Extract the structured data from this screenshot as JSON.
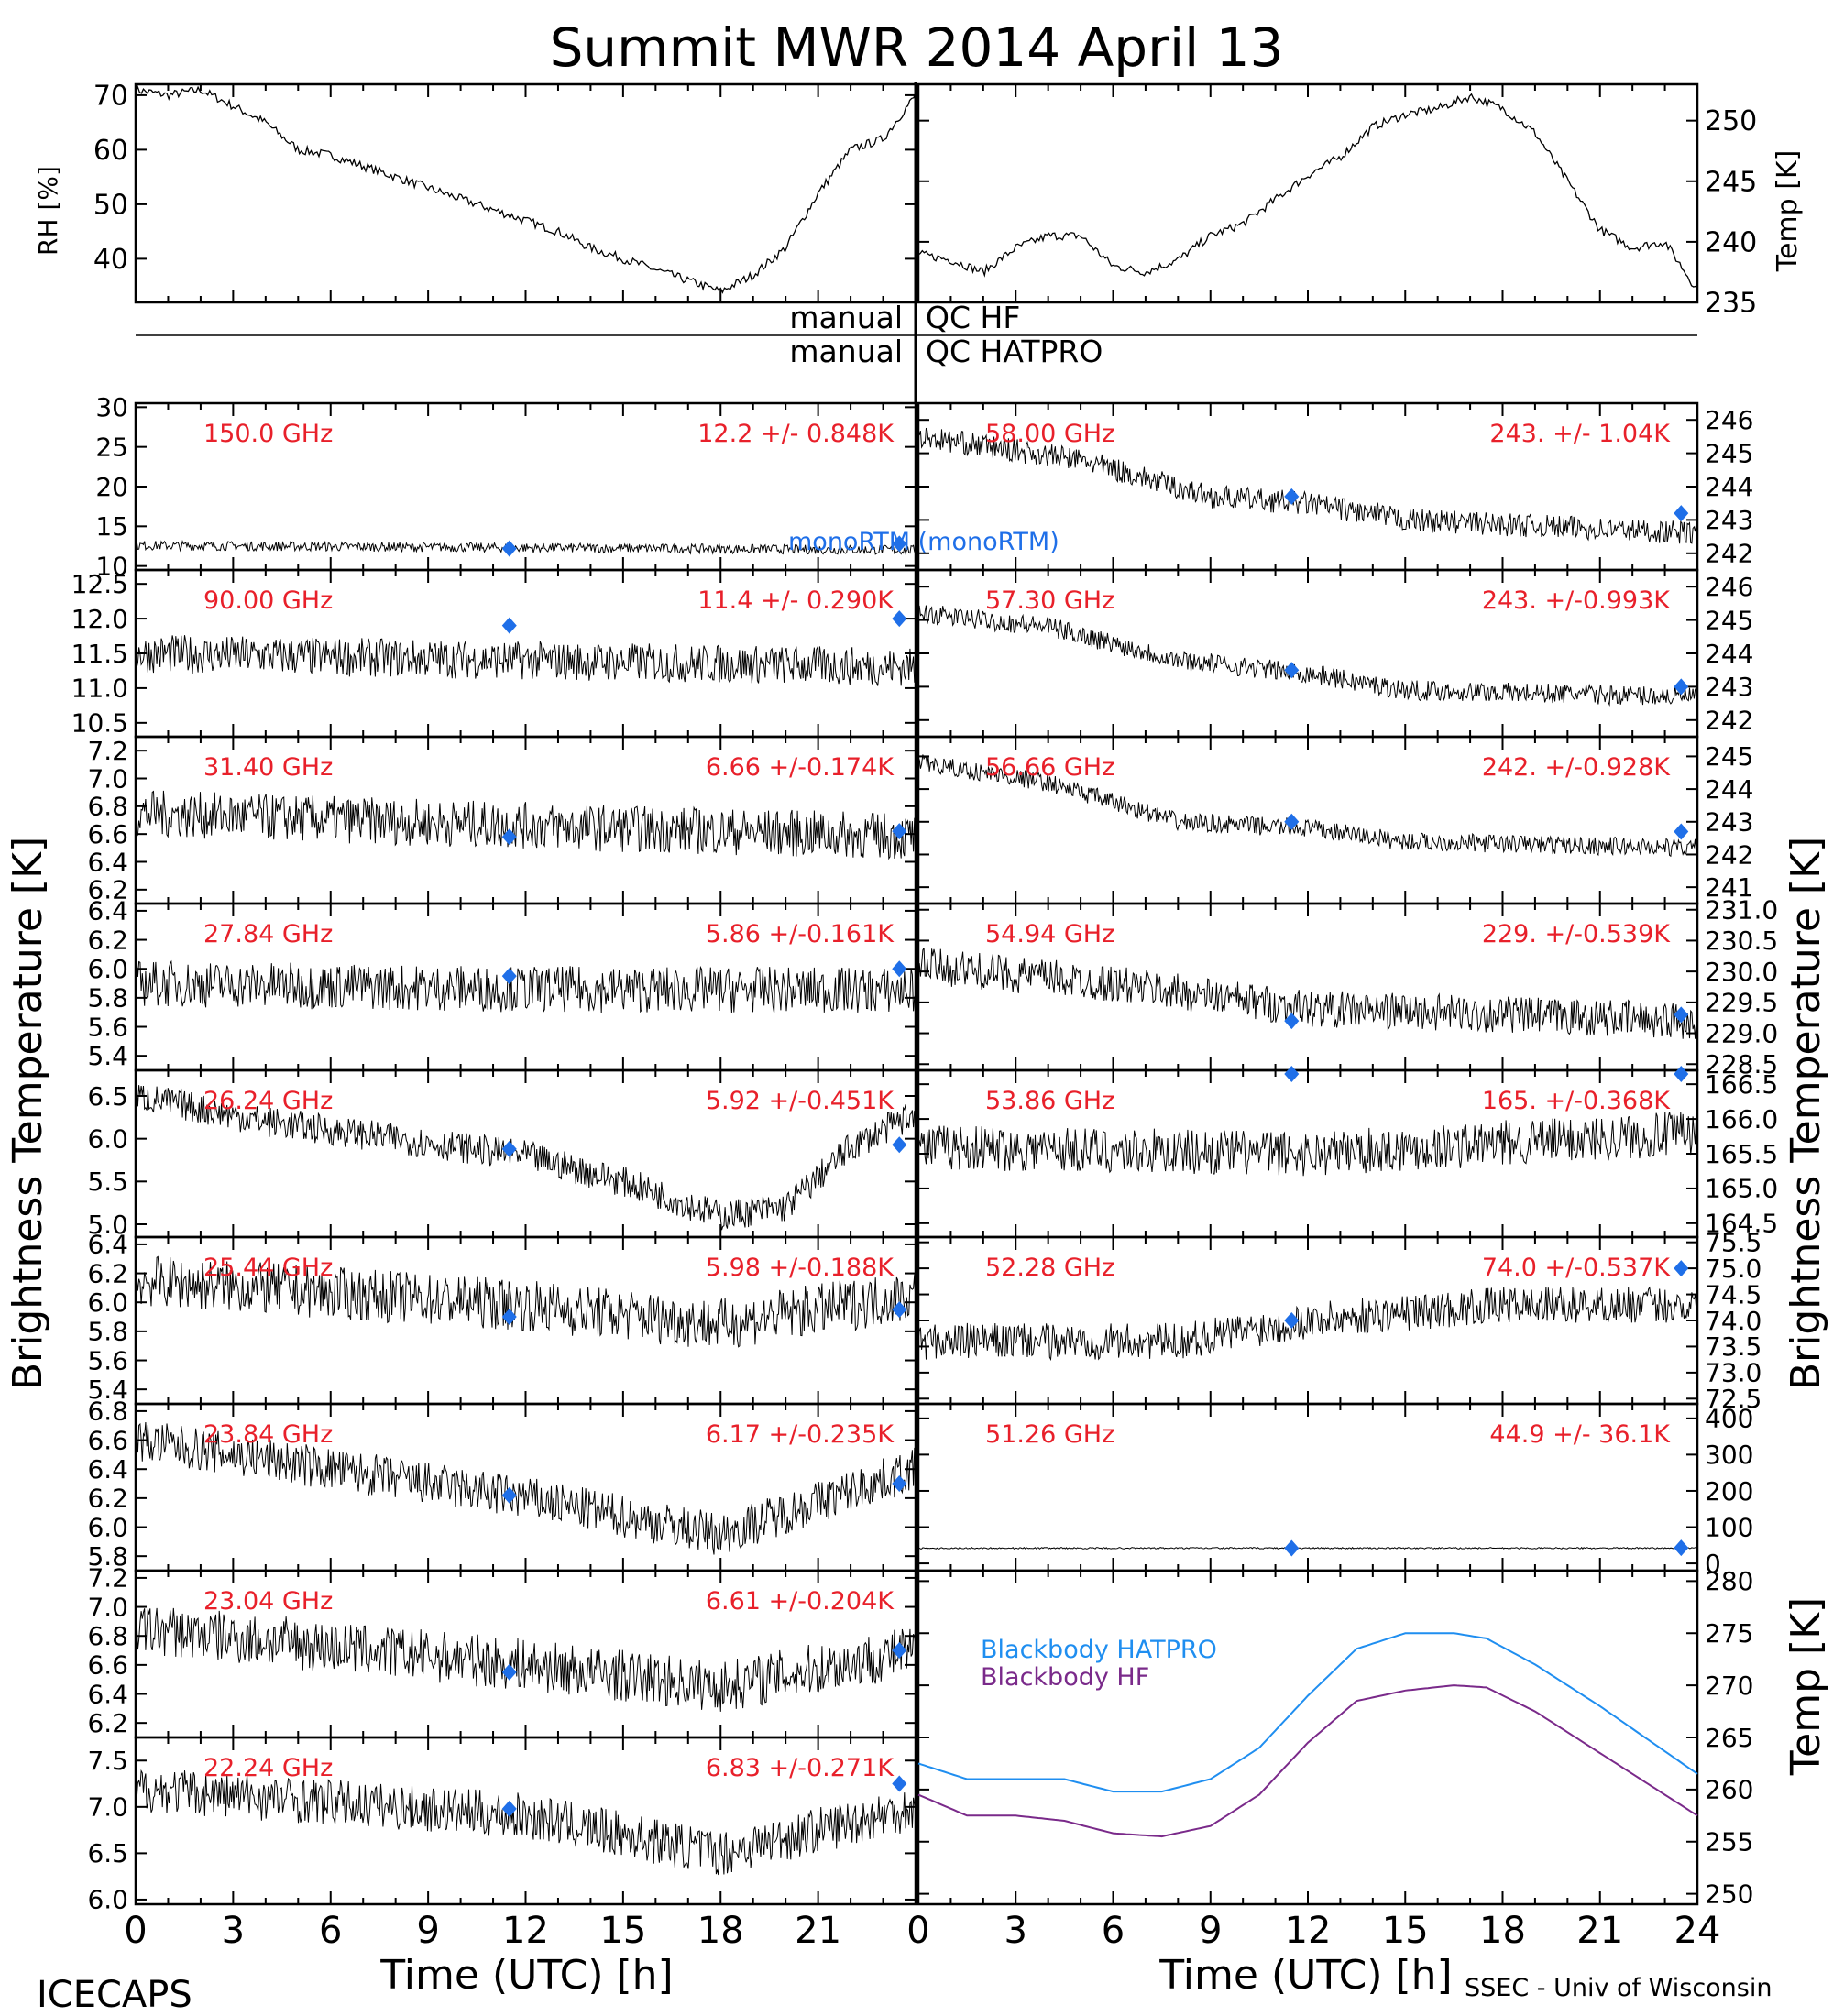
{
  "title": "Summit MWR 2014 April 13",
  "footer": {
    "left": "ICECAPS",
    "right": "SSEC - Univ of Wisconsin"
  },
  "qc": {
    "hf_left": "manual",
    "hf_right": "QC HF",
    "hatpro_left": "manual",
    "hatpro_right": "QC HATPRO"
  },
  "axes": {
    "left_ylabel": "Brightness Temperature [K]",
    "right_ylabel": "Brightness Temperature [K]",
    "xlabel": "Time (UTC) [h]",
    "rh_label": "RH [%]",
    "temp_label": "Temp [K]",
    "bb_temp_label": "Temp [K]",
    "left_xticks": [
      "0",
      "3",
      "6",
      "9",
      "12",
      "15",
      "18",
      "21"
    ],
    "right_xticks": [
      "0",
      "3",
      "6",
      "9",
      "12",
      "15",
      "18",
      "21",
      "24"
    ]
  },
  "monortm_label": "monoRTM (monoRTM)",
  "colors": {
    "channel_text": "#e8202a",
    "model_marker": "#1f6fe8",
    "bb_hatpro": "#1f8ef0",
    "bb_hf": "#7a2a8a",
    "trace": "#000000"
  },
  "chart_data": [
    {
      "id": "rh",
      "type": "line",
      "ylabel": "RH [%]",
      "ylim": [
        32,
        72
      ],
      "yticks": [
        40,
        50,
        60,
        70
      ],
      "x": [
        0,
        1,
        2,
        3,
        4,
        5,
        6,
        7,
        8,
        9,
        10,
        11,
        12,
        13,
        14,
        15,
        16,
        17,
        18,
        19,
        20,
        21,
        22,
        23,
        24
      ],
      "y": [
        71,
        70,
        71,
        68,
        65,
        60,
        59,
        57,
        55,
        53,
        51,
        49,
        47,
        45,
        42,
        40,
        38,
        36,
        34,
        37,
        42,
        52,
        60,
        62,
        70
      ]
    },
    {
      "id": "temp",
      "type": "line",
      "ylabel": "Temp [K]",
      "ylim": [
        235,
        253
      ],
      "yticks": [
        235,
        240,
        245,
        250
      ],
      "x": [
        0,
        1,
        2,
        3,
        4,
        5,
        6,
        7,
        8,
        9,
        10,
        11,
        12,
        13,
        14,
        15,
        16,
        17,
        18,
        19,
        20,
        21,
        22,
        23,
        24
      ],
      "y": [
        239,
        238.5,
        237.5,
        239.5,
        240.5,
        240.5,
        238,
        237.5,
        238.5,
        240.5,
        241.5,
        243.5,
        245.5,
        247,
        249.5,
        250.5,
        251,
        252,
        251,
        249,
        245,
        241,
        239.5,
        240,
        236
      ]
    },
    {
      "id": "hf_qc",
      "type": "line",
      "label": "QC HF"
    },
    {
      "id": "bb",
      "type": "line",
      "ylabel": "Temp [K]",
      "ylim": [
        249,
        281
      ],
      "yticks": [
        250,
        255,
        260,
        265,
        270,
        275,
        280
      ],
      "x": [
        0,
        1.5,
        3,
        4.5,
        6,
        7.5,
        9,
        10.5,
        12,
        13.5,
        15,
        16.5,
        17.5,
        19,
        21,
        24
      ],
      "series": [
        {
          "name": "Blackbody HATPRO",
          "values": [
            262.5,
            261,
            261,
            261,
            259.8,
            259.8,
            261,
            264,
            269,
            273.5,
            275,
            275,
            274.5,
            272,
            268,
            261.5
          ]
        },
        {
          "name": "Blackbody HF",
          "values": [
            259.5,
            257.5,
            257.5,
            257,
            255.8,
            255.5,
            256.5,
            259.5,
            264.5,
            268.5,
            269.5,
            270,
            269.8,
            267.5,
            263.5,
            257.5
          ]
        }
      ]
    }
  ],
  "left_panels": [
    {
      "freq": "150.0 GHz",
      "stat": "12.2 +/- 0.848K",
      "yticks": [
        "10",
        "15",
        "20",
        "25",
        "30"
      ],
      "ylim": [
        9.5,
        30.5
      ],
      "tickvals": [
        10,
        15,
        20,
        25,
        30
      ],
      "trend": [
        [
          0,
          12.6
        ],
        [
          12,
          12.3
        ],
        [
          24,
          12.0
        ]
      ],
      "noise": 0.6,
      "markers": [
        [
          11.5,
          12.2
        ],
        [
          23.5,
          12.8
        ]
      ]
    },
    {
      "freq": "90.00 GHz",
      "stat": "11.4 +/- 0.290K",
      "yticks": [
        "10.5",
        "11.0",
        "11.5",
        "12.0",
        "12.5"
      ],
      "ylim": [
        10.3,
        12.7
      ],
      "tickvals": [
        10.5,
        11.0,
        11.5,
        12.0,
        12.5
      ],
      "trend": [
        [
          0,
          11.5
        ],
        [
          12,
          11.4
        ],
        [
          24,
          11.3
        ]
      ],
      "noise": 0.28,
      "markers": [
        [
          11.5,
          11.9
        ],
        [
          23.5,
          12.0
        ]
      ]
    },
    {
      "freq": "31.40 GHz",
      "stat": "6.66 +/-0.174K",
      "yticks": [
        "6.2",
        "6.4",
        "6.6",
        "6.8",
        "7.0",
        "7.2"
      ],
      "ylim": [
        6.1,
        7.3
      ],
      "tickvals": [
        6.2,
        6.4,
        6.6,
        6.8,
        7.0,
        7.2
      ],
      "trend": [
        [
          0,
          6.75
        ],
        [
          12,
          6.66
        ],
        [
          24,
          6.58
        ]
      ],
      "noise": 0.17,
      "markers": [
        [
          11.5,
          6.58
        ],
        [
          23.5,
          6.62
        ]
      ]
    },
    {
      "freq": "27.84 GHz",
      "stat": "5.86 +/-0.161K",
      "yticks": [
        "5.4",
        "5.6",
        "5.8",
        "6.0",
        "6.2",
        "6.4"
      ],
      "ylim": [
        5.3,
        6.45
      ],
      "tickvals": [
        5.4,
        5.6,
        5.8,
        6.0,
        6.2,
        6.4
      ],
      "trend": [
        [
          0,
          5.9
        ],
        [
          12,
          5.86
        ],
        [
          24,
          5.85
        ]
      ],
      "noise": 0.16,
      "markers": [
        [
          11.5,
          5.95
        ],
        [
          23.5,
          6.0
        ]
      ]
    },
    {
      "freq": "26.24 GHz",
      "stat": "5.92 +/-0.451K",
      "yticks": [
        "5.0",
        "5.5",
        "6.0",
        "6.5"
      ],
      "ylim": [
        4.85,
        6.8
      ],
      "tickvals": [
        5.0,
        5.5,
        6.0,
        6.5
      ],
      "trend": [
        [
          0,
          6.5
        ],
        [
          4,
          6.2
        ],
        [
          8,
          6.0
        ],
        [
          12,
          5.8
        ],
        [
          15,
          5.5
        ],
        [
          18,
          5.1
        ],
        [
          20,
          5.2
        ],
        [
          22,
          5.9
        ],
        [
          24,
          6.3
        ]
      ],
      "noise": 0.18,
      "markers": [
        [
          11.5,
          5.88
        ],
        [
          23.5,
          5.93
        ]
      ]
    },
    {
      "freq": "25.44 GHz",
      "stat": "5.98 +/-0.188K",
      "yticks": [
        "5.4",
        "5.6",
        "5.8",
        "6.0",
        "6.2",
        "6.4"
      ],
      "ylim": [
        5.3,
        6.45
      ],
      "tickvals": [
        5.4,
        5.6,
        5.8,
        6.0,
        6.2,
        6.4
      ],
      "trend": [
        [
          0,
          6.15
        ],
        [
          12,
          5.98
        ],
        [
          18,
          5.85
        ],
        [
          24,
          6.05
        ]
      ],
      "noise": 0.18,
      "markers": [
        [
          11.5,
          5.9
        ],
        [
          23.5,
          5.95
        ]
      ]
    },
    {
      "freq": "23.84 GHz",
      "stat": "6.17 +/-0.235K",
      "yticks": [
        "5.8",
        "6.0",
        "6.2",
        "6.4",
        "6.6",
        "6.8"
      ],
      "ylim": [
        5.7,
        6.85
      ],
      "tickvals": [
        5.8,
        6.0,
        6.2,
        6.4,
        6.6,
        6.8
      ],
      "trend": [
        [
          0,
          6.6
        ],
        [
          12,
          6.2
        ],
        [
          18,
          5.95
        ],
        [
          24,
          6.4
        ]
      ],
      "noise": 0.15,
      "markers": [
        [
          11.5,
          6.22
        ],
        [
          23.5,
          6.3
        ]
      ]
    },
    {
      "freq": "23.04 GHz",
      "stat": "6.61 +/-0.204K",
      "yticks": [
        "6.2",
        "6.4",
        "6.6",
        "6.8",
        "7.0",
        "7.2"
      ],
      "ylim": [
        6.1,
        7.25
      ],
      "tickvals": [
        6.2,
        6.4,
        6.6,
        6.8,
        7.0,
        7.2
      ],
      "trend": [
        [
          0,
          6.85
        ],
        [
          12,
          6.6
        ],
        [
          18,
          6.45
        ],
        [
          24,
          6.7
        ]
      ],
      "noise": 0.18,
      "markers": [
        [
          11.5,
          6.55
        ],
        [
          23.5,
          6.7
        ]
      ]
    },
    {
      "freq": "22.24 GHz",
      "stat": "6.83 +/-0.271K",
      "yticks": [
        "6.0",
        "6.5",
        "7.0",
        "7.5"
      ],
      "ylim": [
        5.95,
        7.75
      ],
      "tickvals": [
        6.0,
        6.5,
        7.0,
        7.5
      ],
      "trend": [
        [
          0,
          7.2
        ],
        [
          12,
          6.9
        ],
        [
          18,
          6.5
        ],
        [
          24,
          7.0
        ]
      ],
      "noise": 0.25,
      "markers": [
        [
          11.5,
          6.98
        ],
        [
          23.5,
          7.25
        ]
      ]
    }
  ],
  "right_panels": [
    {
      "freq": "58.00 GHz",
      "stat": "243. +/- 1.04K",
      "yticks": [
        "242",
        "243",
        "244",
        "245",
        "246"
      ],
      "ylim": [
        241.5,
        246.5
      ],
      "tickvals": [
        242,
        243,
        244,
        245,
        246
      ],
      "trend": [
        [
          0,
          245.5
        ],
        [
          5,
          244.8
        ],
        [
          9,
          243.7
        ],
        [
          12,
          243.5
        ],
        [
          15,
          243.0
        ],
        [
          24,
          242.6
        ]
      ],
      "noise": 0.35,
      "markers": [
        [
          11.5,
          243.7
        ],
        [
          23.5,
          243.2
        ]
      ]
    },
    {
      "freq": "57.30 GHz",
      "stat": "243. +/-0.993K",
      "yticks": [
        "242",
        "243",
        "244",
        "245",
        "246"
      ],
      "ylim": [
        241.5,
        246.5
      ],
      "tickvals": [
        242,
        243,
        244,
        245,
        246
      ],
      "trend": [
        [
          0,
          245.2
        ],
        [
          4,
          244.8
        ],
        [
          8,
          243.8
        ],
        [
          12,
          243.4
        ],
        [
          15,
          242.9
        ],
        [
          24,
          242.7
        ]
      ],
      "noise": 0.3,
      "markers": [
        [
          11.5,
          243.5
        ],
        [
          23.5,
          243.0
        ]
      ]
    },
    {
      "freq": "56.66 GHz",
      "stat": "242. +/-0.928K",
      "yticks": [
        "241",
        "242",
        "243",
        "244",
        "245"
      ],
      "ylim": [
        240.5,
        245.6
      ],
      "tickvals": [
        241,
        242,
        243,
        244,
        245
      ],
      "trend": [
        [
          0,
          244.8
        ],
        [
          4,
          244.2
        ],
        [
          8,
          243.0
        ],
        [
          12,
          242.8
        ],
        [
          15,
          242.4
        ],
        [
          24,
          242.2
        ]
      ],
      "noise": 0.28,
      "markers": [
        [
          11.5,
          243.0
        ],
        [
          23.5,
          242.7
        ]
      ]
    },
    {
      "freq": "54.94 GHz",
      "stat": "229. +/-0.539K",
      "yticks": [
        "228.5",
        "229.0",
        "229.5",
        "230.0",
        "230.5",
        "231.0"
      ],
      "ylim": [
        228.4,
        231.1
      ],
      "tickvals": [
        228.5,
        229.0,
        229.5,
        230.0,
        230.5,
        231.0
      ],
      "trend": [
        [
          0,
          230.1
        ],
        [
          6,
          229.8
        ],
        [
          12,
          229.4
        ],
        [
          18,
          229.3
        ],
        [
          24,
          229.2
        ]
      ],
      "noise": 0.3,
      "markers": [
        [
          11.5,
          229.2
        ],
        [
          23.5,
          229.3
        ]
      ]
    },
    {
      "freq": "53.86 GHz",
      "stat": "165. +/-0.368K",
      "yticks": [
        "164.5",
        "165.0",
        "165.5",
        "166.0",
        "166.5"
      ],
      "ylim": [
        164.3,
        166.7
      ],
      "tickvals": [
        164.5,
        165.0,
        165.5,
        166.0,
        166.5
      ],
      "trend": [
        [
          0,
          165.6
        ],
        [
          12,
          165.5
        ],
        [
          24,
          165.8
        ]
      ],
      "noise": 0.33,
      "markers": [
        [
          11.5,
          166.7
        ],
        [
          23.5,
          166.8
        ]
      ]
    },
    {
      "freq": "52.28 GHz",
      "stat": "74.0 +/-0.537K",
      "yticks": [
        "72.5",
        "73.0",
        "73.5",
        "74.0",
        "74.5",
        "75.0",
        "75.5"
      ],
      "ylim": [
        72.4,
        75.6
      ],
      "tickvals": [
        72.5,
        73.0,
        73.5,
        74.0,
        74.5,
        75.0,
        75.5
      ],
      "trend": [
        [
          0,
          73.6
        ],
        [
          8,
          73.6
        ],
        [
          12,
          74.0
        ],
        [
          18,
          74.3
        ],
        [
          24,
          74.3
        ]
      ],
      "noise": 0.35,
      "markers": [
        [
          11.5,
          74.0
        ],
        [
          23.5,
          75.0
        ]
      ]
    },
    {
      "freq": "51.26 GHz",
      "stat": "44.9 +/- 36.1K",
      "yticks": [
        "0",
        "100",
        "200",
        "300",
        "400"
      ],
      "ylim": [
        -20,
        440
      ],
      "tickvals": [
        0,
        100,
        200,
        300,
        400
      ],
      "trend": [
        [
          0,
          42
        ],
        [
          24,
          42
        ]
      ],
      "noise": 2,
      "markers": [
        [
          11.5,
          42
        ],
        [
          23.5,
          43
        ]
      ]
    }
  ]
}
